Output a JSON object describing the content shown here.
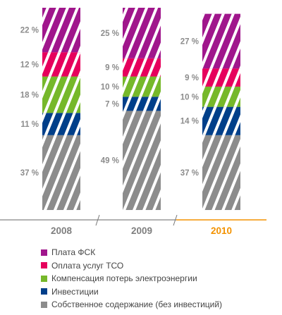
{
  "chart_data": {
    "type": "bar",
    "stacked": true,
    "categories": [
      "2008",
      "2009",
      "2010"
    ],
    "highlighted_category": "2010",
    "unit": "%",
    "series": [
      {
        "name": "Собственное содержание (без инвестиций)",
        "color": "#8c8c8c",
        "values": [
          37,
          49,
          37
        ],
        "labels": [
          "37 %",
          "49 %",
          "37 %"
        ]
      },
      {
        "name": "Инвестиции",
        "color": "#003f8a",
        "values": [
          11,
          7,
          14
        ],
        "labels": [
          "11 %",
          "7 %",
          "14 %"
        ]
      },
      {
        "name": "Компенсация потерь электроэнергии",
        "color": "#76b82a",
        "values": [
          18,
          10,
          10
        ],
        "labels": [
          "18 %",
          "10 %",
          "10 %"
        ]
      },
      {
        "name": "Оплата услуг ТСО",
        "color": "#e6005c",
        "values": [
          12,
          9,
          9
        ],
        "labels": [
          "12 %",
          "9 %",
          "9 %"
        ]
      },
      {
        "name": "Плата ФСК",
        "color": "#a0168c",
        "values": [
          22,
          25,
          27
        ],
        "labels": [
          "22 %",
          "25 %",
          "27 %"
        ]
      }
    ],
    "axis_color": "#999999",
    "highlight_color": "#f39200",
    "legend_position": "bottom-left",
    "bar_pattern": "white diagonal stripes"
  },
  "legend": [
    {
      "label": "Плата ФСК",
      "color": "#a0168c"
    },
    {
      "label": "Оплата услуг ТСО",
      "color": "#e6005c"
    },
    {
      "label": "Компенсация потерь электроэнергии",
      "color": "#76b82a"
    },
    {
      "label": "Инвестиции",
      "color": "#003f8a"
    },
    {
      "label": "Собственное содержание (без инвестиций)",
      "color": "#8c8c8c"
    }
  ]
}
